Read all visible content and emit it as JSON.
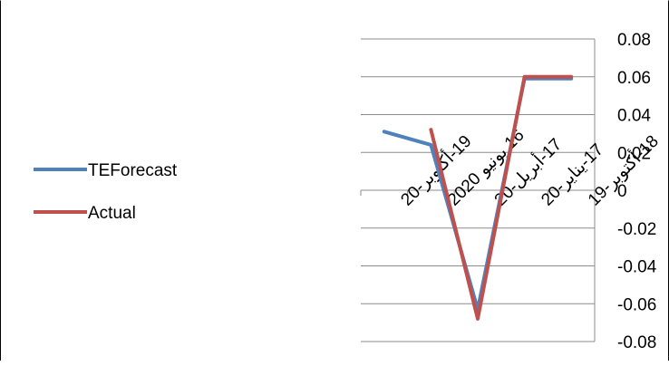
{
  "chart_data": {
    "type": "line",
    "title": "",
    "xlabel": "",
    "ylabel": "",
    "categories": [
      "19-أكتوبر-20",
      "16 يونيو 2020",
      "17-أبريل-20",
      "17-يناير-20",
      "18-أكتوبر-19"
    ],
    "series": [
      {
        "name": "TEForecast",
        "color": "#4F81BD",
        "values": [
          0.031,
          0.024,
          -0.063,
          0.059,
          0.059
        ]
      },
      {
        "name": "Actual",
        "color": "#C0504D",
        "values": [
          null,
          0.032,
          -0.068,
          0.06,
          0.06
        ]
      }
    ],
    "yticks": [
      "0.08",
      "0.06",
      "0.04",
      "0.02",
      "0",
      "-0.02",
      "-0.04",
      "-0.06",
      "-0.08"
    ],
    "ylim": [
      -0.08,
      0.08
    ],
    "grid": true,
    "legend_position": "left"
  }
}
